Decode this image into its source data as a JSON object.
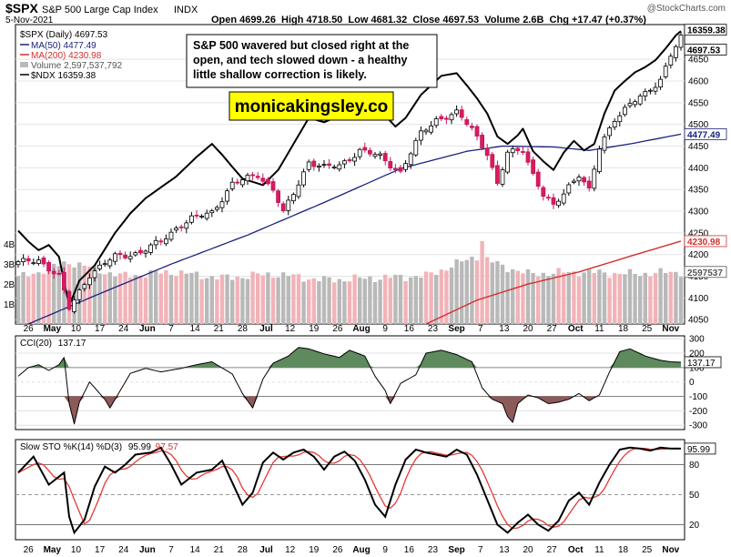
{
  "header": {
    "symbol": "$SPX",
    "name": "S&P 500 Large Cap Index",
    "exchange": "INDX",
    "watermark": "@StockCharts.com",
    "date": "5-Nov-2021",
    "ohlc": "Open 4699.26  High 4718.50  Low 4681.32  Close 4697.53  Volume 2.6B  Chg +17.47 (+0.37%)"
  },
  "legend": [
    {
      "text": "$SPX (Daily) 4697.53",
      "color": "#000000"
    },
    {
      "text": "MA(50) 4477.49",
      "color": "#1a237e"
    },
    {
      "text": "MA(200) 4230.98",
      "color": "#d32f2f"
    },
    {
      "text": "Volume 2,597,537,792",
      "color": "#555555"
    },
    {
      "text": "$NDX 16359.38",
      "color": "#000000"
    }
  ],
  "annotation": {
    "note": [
      "S&P 500 wavered but closed right at the",
      "open, and tech slowed down - a healthy",
      "little shallow correction is likely."
    ],
    "site": "monicakingsley.co"
  },
  "chart_data": [
    {
      "type": "candlestick",
      "title": "$SPX (Daily)",
      "ylim": [
        4040,
        4730
      ],
      "yticks": [
        "4050",
        "4100",
        "4150",
        "4200",
        "4250",
        "4300",
        "4350",
        "4400",
        "4450",
        "4500",
        "4550",
        "4600",
        "4650"
      ],
      "volume_ticks": [
        "1B",
        "2B",
        "3B",
        "4B"
      ],
      "price_tags": [
        "16359.38",
        "4697.53",
        "4477.49",
        "4230.98",
        "2597537"
      ],
      "xlabels": [
        "26",
        "May",
        "10",
        "17",
        "24",
        "Jun",
        "7",
        "14",
        "21",
        "28",
        "Jul",
        "12",
        "19",
        "26",
        "Aug",
        "9",
        "16",
        "23",
        "Sep",
        "7",
        "13",
        "20",
        "27",
        "Oct",
        "11",
        "18",
        "25",
        "Nov"
      ],
      "close_anchors": [
        [
          0,
          4180
        ],
        [
          4,
          4188
        ],
        [
          8,
          4150
        ],
        [
          10,
          4075
        ],
        [
          14,
          4155
        ],
        [
          19,
          4195
        ],
        [
          24,
          4205
        ],
        [
          28,
          4230
        ],
        [
          31,
          4262
        ],
        [
          34,
          4282
        ],
        [
          38,
          4298
        ],
        [
          42,
          4362
        ],
        [
          47,
          4385
        ],
        [
          50,
          4350
        ],
        [
          52,
          4295
        ],
        [
          54,
          4340
        ],
        [
          57,
          4415
        ],
        [
          60,
          4400
        ],
        [
          63,
          4405
        ],
        [
          67,
          4440
        ],
        [
          71,
          4425
        ],
        [
          75,
          4390
        ],
        [
          79,
          4478
        ],
        [
          82,
          4512
        ],
        [
          86,
          4525
        ],
        [
          89,
          4490
        ],
        [
          92,
          4435
        ],
        [
          94,
          4360
        ],
        [
          96,
          4433
        ],
        [
          99,
          4445
        ],
        [
          101,
          4385
        ],
        [
          103,
          4335
        ],
        [
          105,
          4310
        ],
        [
          108,
          4360
        ],
        [
          110,
          4385
        ],
        [
          112,
          4345
        ],
        [
          114,
          4445
        ],
        [
          117,
          4515
        ],
        [
          120,
          4545
        ],
        [
          123,
          4570
        ],
        [
          126,
          4605
        ],
        [
          128,
          4660
        ],
        [
          130,
          4697.53
        ]
      ],
      "ma50_anchors": [
        [
          0,
          4030
        ],
        [
          15,
          4105
        ],
        [
          30,
          4178
        ],
        [
          45,
          4245
        ],
        [
          60,
          4320
        ],
        [
          75,
          4398
        ],
        [
          88,
          4438
        ],
        [
          95,
          4450
        ],
        [
          105,
          4448
        ],
        [
          112,
          4440
        ],
        [
          120,
          4455
        ],
        [
          130,
          4477.49
        ]
      ],
      "ma200_anchors": [
        [
          80,
          4040
        ],
        [
          90,
          4095
        ],
        [
          100,
          4132
        ],
        [
          110,
          4160
        ],
        [
          120,
          4196
        ],
        [
          130,
          4230.98
        ]
      ],
      "ndx_anchors": [
        [
          0,
          4255
        ],
        [
          2,
          4230
        ],
        [
          4,
          4210
        ],
        [
          6,
          4222
        ],
        [
          8,
          4195
        ],
        [
          10,
          4082
        ],
        [
          12,
          4140
        ],
        [
          15,
          4175
        ],
        [
          19,
          4250
        ],
        [
          22,
          4295
        ],
        [
          25,
          4330
        ],
        [
          28,
          4355
        ],
        [
          31,
          4380
        ],
        [
          35,
          4425
        ],
        [
          38,
          4455
        ],
        [
          40,
          4430
        ],
        [
          42,
          4402
        ],
        [
          44,
          4375
        ],
        [
          48,
          4360
        ],
        [
          51,
          4395
        ],
        [
          54,
          4455
        ],
        [
          57,
          4515
        ],
        [
          60,
          4505
        ],
        [
          63,
          4520
        ],
        [
          66,
          4538
        ],
        [
          69,
          4542
        ],
        [
          72,
          4520
        ],
        [
          74,
          4495
        ],
        [
          76,
          4515
        ],
        [
          79,
          4568
        ],
        [
          81,
          4590
        ],
        [
          83,
          4612
        ],
        [
          86,
          4618
        ],
        [
          88,
          4590
        ],
        [
          90,
          4560
        ],
        [
          92,
          4525
        ],
        [
          94,
          4472
        ],
        [
          96,
          4455
        ],
        [
          98,
          4475
        ],
        [
          99,
          4490
        ],
        [
          101,
          4438
        ],
        [
          103,
          4415
        ],
        [
          105,
          4395
        ],
        [
          107,
          4435
        ],
        [
          109,
          4462
        ],
        [
          111,
          4440
        ],
        [
          113,
          4455
        ],
        [
          115,
          4525
        ],
        [
          117,
          4578
        ],
        [
          119,
          4600
        ],
        [
          121,
          4620
        ],
        [
          123,
          4632
        ],
        [
          125,
          4648
        ],
        [
          127,
          4675
        ],
        [
          129,
          4705
        ],
        [
          130,
          4715
        ]
      ],
      "volume_anchors": [
        [
          0,
          2.3
        ],
        [
          10,
          3.1
        ],
        [
          20,
          2.4
        ],
        [
          30,
          2.6
        ],
        [
          40,
          2.3
        ],
        [
          50,
          2.5
        ],
        [
          60,
          2.2
        ],
        [
          70,
          2.3
        ],
        [
          80,
          2.4
        ],
        [
          90,
          3.4
        ],
        [
          95,
          2.9
        ],
        [
          100,
          2.5
        ],
        [
          110,
          2.6
        ],
        [
          120,
          2.5
        ],
        [
          130,
          2.6
        ]
      ]
    },
    {
      "type": "line",
      "title": "CCI(20)",
      "value": "137.17",
      "ylim": [
        -330,
        320
      ],
      "yticks": [
        "300",
        "200",
        "100",
        "0",
        "-100",
        "-200",
        "-300"
      ],
      "tag": "137.17",
      "anchors": [
        [
          0,
          40
        ],
        [
          2,
          100
        ],
        [
          4,
          120
        ],
        [
          6,
          80
        ],
        [
          8,
          120
        ],
        [
          9,
          170
        ],
        [
          10,
          -150
        ],
        [
          11,
          -290
        ],
        [
          12,
          -140
        ],
        [
          14,
          0
        ],
        [
          17,
          -120
        ],
        [
          18,
          -180
        ],
        [
          20,
          -60
        ],
        [
          22,
          60
        ],
        [
          25,
          95
        ],
        [
          28,
          70
        ],
        [
          32,
          95
        ],
        [
          35,
          120
        ],
        [
          38,
          140
        ],
        [
          42,
          55
        ],
        [
          44,
          -80
        ],
        [
          46,
          -180
        ],
        [
          48,
          20
        ],
        [
          50,
          130
        ],
        [
          53,
          180
        ],
        [
          55,
          240
        ],
        [
          57,
          230
        ],
        [
          60,
          195
        ],
        [
          63,
          170
        ],
        [
          65,
          220
        ],
        [
          68,
          180
        ],
        [
          70,
          40
        ],
        [
          72,
          -60
        ],
        [
          73,
          -150
        ],
        [
          75,
          -10
        ],
        [
          78,
          50
        ],
        [
          80,
          200
        ],
        [
          83,
          220
        ],
        [
          86,
          190
        ],
        [
          89,
          140
        ],
        [
          91,
          -40
        ],
        [
          93,
          -120
        ],
        [
          95,
          -150
        ],
        [
          96,
          -240
        ],
        [
          97,
          -280
        ],
        [
          98,
          -150
        ],
        [
          100,
          -90
        ],
        [
          102,
          -110
        ],
        [
          104,
          -150
        ],
        [
          106,
          -140
        ],
        [
          108,
          -120
        ],
        [
          110,
          -80
        ],
        [
          112,
          -130
        ],
        [
          114,
          -90
        ],
        [
          116,
          70
        ],
        [
          118,
          210
        ],
        [
          120,
          230
        ],
        [
          123,
          180
        ],
        [
          126,
          150
        ],
        [
          128,
          140
        ],
        [
          130,
          137.17
        ]
      ]
    },
    {
      "type": "line",
      "title": "Slow STO %K(14) %D(3)",
      "k_value": "95.99",
      "d_value": "97.57",
      "ylim": [
        5,
        105
      ],
      "yticks": [
        "80",
        "50",
        "20"
      ],
      "tag": "95.99",
      "k_anchors": [
        [
          0,
          72
        ],
        [
          3,
          88
        ],
        [
          6,
          60
        ],
        [
          9,
          72
        ],
        [
          10,
          28
        ],
        [
          11,
          12
        ],
        [
          13,
          25
        ],
        [
          15,
          58
        ],
        [
          17,
          78
        ],
        [
          19,
          72
        ],
        [
          21,
          80
        ],
        [
          23,
          90
        ],
        [
          26,
          92
        ],
        [
          28,
          97
        ],
        [
          30,
          80
        ],
        [
          32,
          60
        ],
        [
          35,
          72
        ],
        [
          38,
          75
        ],
        [
          40,
          84
        ],
        [
          42,
          62
        ],
        [
          44,
          40
        ],
        [
          46,
          52
        ],
        [
          48,
          82
        ],
        [
          50,
          92
        ],
        [
          52,
          85
        ],
        [
          54,
          92
        ],
        [
          56,
          95
        ],
        [
          58,
          88
        ],
        [
          60,
          75
        ],
        [
          62,
          88
        ],
        [
          64,
          93
        ],
        [
          66,
          84
        ],
        [
          68,
          65
        ],
        [
          70,
          40
        ],
        [
          72,
          28
        ],
        [
          74,
          60
        ],
        [
          76,
          85
        ],
        [
          78,
          95
        ],
        [
          80,
          92
        ],
        [
          82,
          90
        ],
        [
          84,
          88
        ],
        [
          86,
          95
        ],
        [
          88,
          90
        ],
        [
          90,
          70
        ],
        [
          92,
          45
        ],
        [
          94,
          20
        ],
        [
          96,
          12
        ],
        [
          98,
          22
        ],
        [
          100,
          30
        ],
        [
          102,
          20
        ],
        [
          104,
          14
        ],
        [
          106,
          24
        ],
        [
          108,
          44
        ],
        [
          110,
          52
        ],
        [
          112,
          40
        ],
        [
          114,
          62
        ],
        [
          116,
          80
        ],
        [
          118,
          95
        ],
        [
          120,
          97
        ],
        [
          122,
          96
        ],
        [
          124,
          94
        ],
        [
          126,
          97
        ],
        [
          128,
          96
        ],
        [
          130,
          95.99
        ]
      ]
    }
  ]
}
